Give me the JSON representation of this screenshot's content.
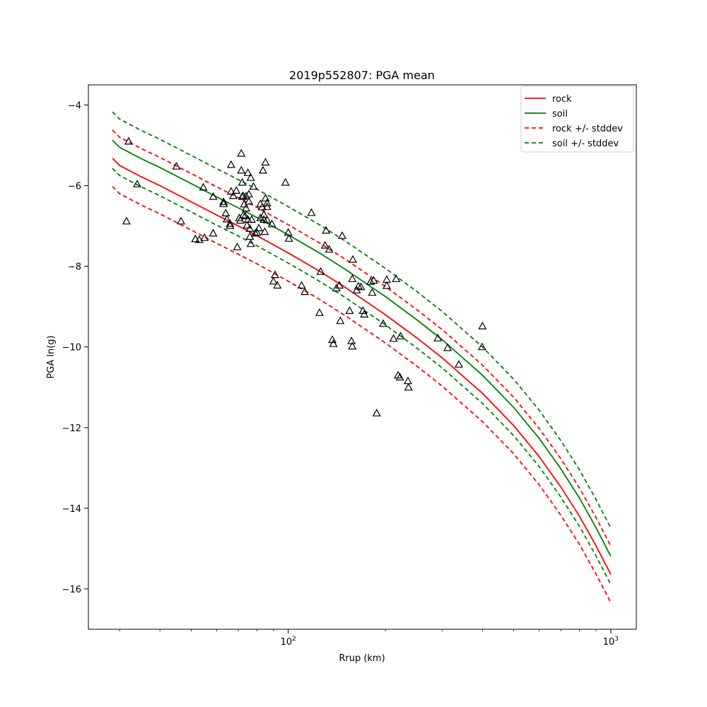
{
  "chart_data": {
    "type": "line",
    "title": "2019p552807: PGA mean",
    "xlabel": "Rrup (km)",
    "ylabel": "PGA ln(g)",
    "xscale": "log",
    "xlim": [
      24,
      1200
    ],
    "ylim": [
      -17,
      -3.5
    ],
    "x_major_ticks": [
      {
        "value": 100,
        "label": "10",
        "exp": "2"
      },
      {
        "value": 1000,
        "label": "10",
        "exp": "3"
      }
    ],
    "x_minor_ticks": [
      30,
      40,
      50,
      60,
      70,
      80,
      90,
      200,
      300,
      400,
      500,
      600,
      700,
      800,
      900
    ],
    "y_ticks": [
      -16,
      -14,
      -12,
      -10,
      -8,
      -6,
      -4
    ],
    "grid": false,
    "legend_position": "top-right",
    "series": [
      {
        "name": "rock",
        "color": "#ff0000",
        "dash": "solid",
        "x": [
          28.5,
          30,
          35,
          40,
          50,
          60,
          70,
          80,
          100,
          125,
          150,
          200,
          250,
          300,
          400,
          500,
          600,
          700,
          800,
          900,
          1000
        ],
        "y": [
          -5.32,
          -5.5,
          -5.78,
          -6.0,
          -6.4,
          -6.73,
          -7.0,
          -7.24,
          -7.67,
          -8.12,
          -8.52,
          -9.2,
          -9.77,
          -10.27,
          -11.15,
          -11.95,
          -12.72,
          -13.47,
          -14.2,
          -14.93,
          -15.64
        ]
      },
      {
        "name": "soil",
        "color": "#008000",
        "dash": "solid",
        "x": [
          28.5,
          30,
          35,
          40,
          50,
          60,
          70,
          80,
          100,
          125,
          150,
          200,
          250,
          300,
          400,
          500,
          600,
          700,
          800,
          900,
          1000
        ],
        "y": [
          -4.87,
          -5.05,
          -5.33,
          -5.55,
          -5.95,
          -6.28,
          -6.55,
          -6.79,
          -7.22,
          -7.67,
          -8.07,
          -8.75,
          -9.32,
          -9.82,
          -10.7,
          -11.5,
          -12.27,
          -13.02,
          -13.75,
          -14.48,
          -15.19
        ]
      },
      {
        "name": "rock +/- stddev",
        "color": "#ff0000",
        "dash": "dashed",
        "x": [
          28.5,
          30,
          35,
          40,
          50,
          60,
          70,
          80,
          100,
          125,
          150,
          200,
          250,
          300,
          400,
          500,
          600,
          700,
          800,
          900,
          1000
        ],
        "y_upper": [
          -4.62,
          -4.8,
          -5.08,
          -5.3,
          -5.7,
          -6.03,
          -6.3,
          -6.54,
          -6.97,
          -7.42,
          -7.82,
          -8.5,
          -9.07,
          -9.57,
          -10.45,
          -11.25,
          -12.02,
          -12.77,
          -13.5,
          -14.23,
          -14.94
        ],
        "y_lower": [
          -6.02,
          -6.2,
          -6.48,
          -6.7,
          -7.1,
          -7.43,
          -7.7,
          -7.94,
          -8.37,
          -8.82,
          -9.22,
          -9.9,
          -10.47,
          -10.97,
          -11.85,
          -12.65,
          -13.42,
          -14.17,
          -14.9,
          -15.63,
          -16.34
        ]
      },
      {
        "name": "soil +/- stddev",
        "color": "#008000",
        "dash": "dashed",
        "x": [
          28.5,
          30,
          35,
          40,
          50,
          60,
          70,
          80,
          100,
          125,
          150,
          200,
          250,
          300,
          400,
          500,
          600,
          700,
          800,
          900,
          1000
        ],
        "y_upper": [
          -4.17,
          -4.35,
          -4.63,
          -4.85,
          -5.25,
          -5.58,
          -5.85,
          -6.09,
          -6.52,
          -6.97,
          -7.37,
          -8.05,
          -8.62,
          -9.12,
          -10.0,
          -10.8,
          -11.57,
          -12.32,
          -13.05,
          -13.78,
          -14.49
        ],
        "y_lower": [
          -5.57,
          -5.75,
          -6.03,
          -6.25,
          -6.65,
          -6.98,
          -7.25,
          -7.49,
          -7.92,
          -8.37,
          -8.77,
          -9.45,
          -10.02,
          -10.52,
          -11.4,
          -12.2,
          -12.97,
          -13.72,
          -14.45,
          -15.18,
          -15.89
        ]
      }
    ],
    "observations": {
      "marker": "triangle",
      "points": [
        [
          32.0,
          -4.9
        ],
        [
          31.5,
          -6.88
        ],
        [
          34.0,
          -5.96
        ],
        [
          45.0,
          -5.52
        ],
        [
          46.5,
          -6.88
        ],
        [
          51.5,
          -7.32
        ],
        [
          53.0,
          -7.34
        ],
        [
          55.0,
          -7.29
        ],
        [
          54.5,
          -6.04
        ],
        [
          58.5,
          -6.27
        ],
        [
          58.5,
          -7.18
        ],
        [
          63.0,
          -6.4
        ],
        [
          63.0,
          -6.45
        ],
        [
          64.0,
          -6.68
        ],
        [
          64.5,
          -6.83
        ],
        [
          66.0,
          -6.94
        ],
        [
          66.0,
          -6.99
        ],
        [
          66.5,
          -6.14
        ],
        [
          66.5,
          -5.48
        ],
        [
          67.5,
          -6.25
        ],
        [
          69.0,
          -6.12
        ],
        [
          69.5,
          -7.52
        ],
        [
          70.5,
          -6.8
        ],
        [
          71.0,
          -6.86
        ],
        [
          71.5,
          -5.2
        ],
        [
          71.5,
          -5.62
        ],
        [
          72.0,
          -5.92
        ],
        [
          72.0,
          -6.27
        ],
        [
          72.5,
          -6.25
        ],
        [
          72.5,
          -6.73
        ],
        [
          73.0,
          -6.46
        ],
        [
          73.5,
          -6.75
        ],
        [
          74.0,
          -6.26
        ],
        [
          74.0,
          -6.56
        ],
        [
          74.5,
          -6.98
        ],
        [
          75.0,
          -6.84
        ],
        [
          75.0,
          -5.68
        ],
        [
          75.5,
          -6.21
        ],
        [
          75.5,
          -6.39
        ],
        [
          76.0,
          -7.06
        ],
        [
          76.0,
          -7.26
        ],
        [
          76.5,
          -7.44
        ],
        [
          76.5,
          -5.8
        ],
        [
          77.0,
          -6.84
        ],
        [
          78.0,
          -6.02
        ],
        [
          79.0,
          -7.18
        ],
        [
          80.0,
          -7.16
        ],
        [
          81.0,
          -7.05
        ],
        [
          82.0,
          -6.45
        ],
        [
          82.0,
          -6.8
        ],
        [
          83.0,
          -6.53
        ],
        [
          83.5,
          -5.62
        ],
        [
          84.0,
          -6.72
        ],
        [
          84.0,
          -6.84
        ],
        [
          84.5,
          -7.14
        ],
        [
          85.0,
          -5.42
        ],
        [
          85.0,
          -6.31
        ],
        [
          86.0,
          -6.43
        ],
        [
          86.0,
          -6.52
        ],
        [
          86.0,
          -6.85
        ],
        [
          89.0,
          -6.95
        ],
        [
          90.0,
          -8.37
        ],
        [
          91.0,
          -8.21
        ],
        [
          92.5,
          -8.47
        ],
        [
          98.0,
          -5.92
        ],
        [
          100.0,
          -7.16
        ],
        [
          100.5,
          -7.31
        ],
        [
          110.0,
          -8.47
        ],
        [
          112.5,
          -8.63
        ],
        [
          118.0,
          -6.67
        ],
        [
          125.0,
          -9.15
        ],
        [
          126.0,
          -8.13
        ],
        [
          130.0,
          -7.48
        ],
        [
          131.0,
          -7.11
        ],
        [
          134.0,
          -7.58
        ],
        [
          137.0,
          -9.82
        ],
        [
          138.0,
          -9.92
        ],
        [
          141.0,
          -8.54
        ],
        [
          144.0,
          -8.47
        ],
        [
          145.0,
          -9.35
        ],
        [
          147.0,
          -7.24
        ],
        [
          155.0,
          -9.1
        ],
        [
          157.0,
          -9.85
        ],
        [
          158.0,
          -9.98
        ],
        [
          158.0,
          -8.31
        ],
        [
          158.5,
          -7.83
        ],
        [
          163.0,
          -8.59
        ],
        [
          165.0,
          -8.49
        ],
        [
          168.0,
          -8.51
        ],
        [
          170.5,
          -9.1
        ],
        [
          172.0,
          -9.19
        ],
        [
          180.0,
          -8.38
        ],
        [
          182.0,
          -8.65
        ],
        [
          184.0,
          -8.35
        ],
        [
          188.0,
          -11.64
        ],
        [
          197.0,
          -9.42
        ],
        [
          202.0,
          -8.48
        ],
        [
          202.0,
          -8.33
        ],
        [
          212.0,
          -9.79
        ],
        [
          216.0,
          -8.31
        ],
        [
          219.0,
          -10.7
        ],
        [
          222.0,
          -10.75
        ],
        [
          223.0,
          -9.73
        ],
        [
          235.0,
          -10.84
        ],
        [
          236.0,
          -11.0
        ],
        [
          291.0,
          -9.78
        ],
        [
          312.0,
          -10.02
        ],
        [
          338.0,
          -10.43
        ],
        [
          400.0,
          -9.48
        ],
        [
          399.0,
          -10.0
        ]
      ]
    }
  }
}
